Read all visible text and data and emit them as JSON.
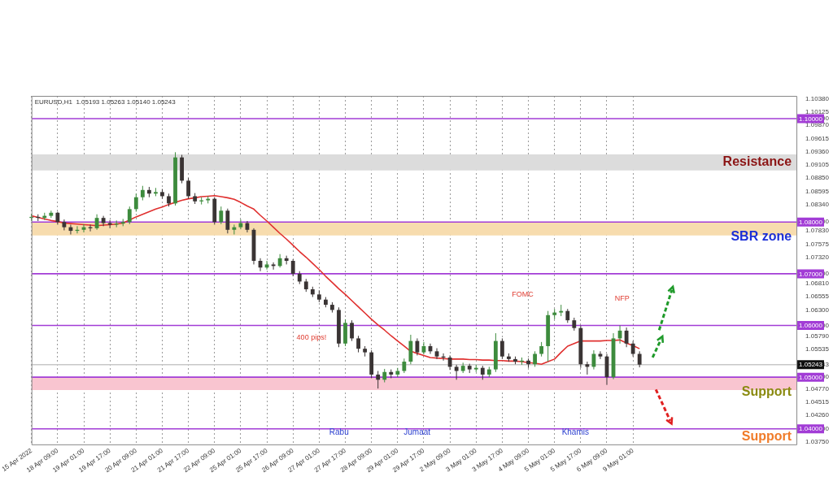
{
  "chart_data": {
    "type": "candlestick",
    "title": "EURUSD,H1  1.05193 1.05263 1.05140 1.05243",
    "categories": [
      "15 Apr 2022",
      null,
      null,
      null,
      "18 Apr 09:00",
      null,
      null,
      null,
      "19 Apr 01:00",
      null,
      null,
      null,
      "19 Apr 17:00",
      null,
      null,
      null,
      "20 Apr 09:00",
      null,
      null,
      null,
      "21 Apr 01:00",
      null,
      null,
      null,
      "21 Apr 17:00",
      null,
      null,
      null,
      "22 Apr 09:00",
      null,
      null,
      null,
      "25 Apr 01:00",
      null,
      null,
      null,
      "25 Apr 17:00",
      null,
      null,
      null,
      "26 Apr 09:00",
      null,
      null,
      null,
      "27 Apr 01:00",
      null,
      null,
      null,
      "27 Apr 17:00",
      null,
      null,
      null,
      "28 Apr 09:00",
      null,
      null,
      null,
      "29 Apr 01:00",
      null,
      null,
      null,
      "29 Apr 17:00",
      null,
      null,
      null,
      "2 May 09:00",
      null,
      null,
      null,
      "3 May 01:00",
      null,
      null,
      null,
      "3 May 17:00",
      null,
      null,
      null,
      "4 May 09:00",
      null,
      null,
      null,
      "5 May 01:00",
      null,
      null,
      null,
      "5 May 17:00",
      null,
      null,
      null,
      "6 May 09:00",
      null,
      null,
      null,
      "9 May 01:00",
      null,
      null,
      null,
      null,
      null,
      null,
      null,
      null,
      null,
      null,
      null,
      null,
      null,
      null,
      null,
      null,
      null,
      null,
      null,
      null,
      null,
      null,
      null,
      null,
      null
    ],
    "ylim": [
      1.037,
      1.1044
    ],
    "yticks": [
      {
        "value": 1.0375,
        "label": "1.03750"
      },
      {
        "value": 1.04,
        "label": "1.04000"
      },
      {
        "value": 1.0426,
        "label": "1.04260"
      },
      {
        "value": 1.04515,
        "label": "1.04515"
      },
      {
        "value": 1.0477,
        "label": "1.04770"
      },
      {
        "value": 1.05,
        "label": "1.05000"
      },
      {
        "value": 1.05243,
        "label": "1.05243"
      },
      {
        "value": 1.05535,
        "label": "1.05535"
      },
      {
        "value": 1.0579,
        "label": "1.05790"
      },
      {
        "value": 1.06,
        "label": "1.06000"
      },
      {
        "value": 1.063,
        "label": "1.06300"
      },
      {
        "value": 1.06555,
        "label": "1.06555"
      },
      {
        "value": 1.0681,
        "label": "1.06810"
      },
      {
        "value": 1.07,
        "label": "1.07000"
      },
      {
        "value": 1.0732,
        "label": "1.07320"
      },
      {
        "value": 1.07575,
        "label": "1.07575"
      },
      {
        "value": 1.0783,
        "label": "1.07830"
      },
      {
        "value": 1.08,
        "label": "1.08000"
      },
      {
        "value": 1.0834,
        "label": "1.08340"
      },
      {
        "value": 1.08595,
        "label": "1.08595"
      },
      {
        "value": 1.0885,
        "label": "1.08850"
      },
      {
        "value": 1.09105,
        "label": "1.09105"
      },
      {
        "value": 1.0936,
        "label": "1.09360"
      },
      {
        "value": 1.09615,
        "label": "1.09615"
      },
      {
        "value": 1.0987,
        "label": "1.09870"
      },
      {
        "value": 1.1,
        "label": "1.10000"
      },
      {
        "value": 1.10125,
        "label": "1.10125"
      },
      {
        "value": 1.1038,
        "label": "1.10380"
      }
    ],
    "grid": "x",
    "series": [
      {
        "colors": [
          "#3d8b3d",
          "#3a3434",
          "#3d8b3d",
          "#3d8b3d",
          "#3a3434",
          "#3a3434",
          "#3a3434",
          "#3d8b3d",
          "#3d8b3d",
          "#3a3434",
          "#3d8b3d",
          "#3a3434",
          "#3a3434",
          "#3d8b3d",
          "#3d8b3d",
          "#3d8b3d",
          "#3d8b3d",
          "#3d8b3d",
          "#3a3434",
          "#3d8b3d",
          "#3a3434",
          "#3a3434",
          "#3d8b3d",
          "#3a3434",
          "#3a3434",
          "#3a3434",
          "#3d8b3d",
          "#3d8b3d",
          "#3a3434",
          "#3d8b3d",
          "#3a3434",
          "#3d8b3d",
          "#3d8b3d",
          "#3a3434",
          "#3a3434",
          "#3a3434",
          "#3d8b3d",
          "#3a3434",
          "#3d8b3d",
          "#3a3434",
          "#3a3434",
          "#3a3434",
          "#3a3434",
          "#3a3434",
          "#3a3434",
          "#3a3434",
          "#3a3434",
          "#3a3434",
          "#3d8b3d",
          "#3a3434",
          "#3a3434",
          "#3a3434",
          "#3a3434",
          "#3a3434",
          "#3d8b3d",
          "#3a3434",
          "#3d8b3d",
          "#3d8b3d",
          "#3d8b3d",
          "#3a3434",
          "#3d8b3d",
          "#3a3434",
          "#3a3434",
          "#3a3434",
          "#3a3434",
          "#3a3434",
          "#3d8b3d",
          "#3a3434",
          "#3d8b3d",
          "#3a3434",
          "#3d8b3d",
          "#3d8b3d",
          "#3a3434",
          "#3a3434",
          "#3a3434",
          "#3d8b3d",
          "#3a3434",
          "#3d8b3d",
          "#3d8b3d",
          "#3d8b3d",
          "#3d8b3d",
          "#3d8b3d",
          "#3a3434",
          "#3a3434",
          "#3a3434",
          "#3a3434",
          "#3d8b3d",
          "#3a3434",
          "#3a3434",
          "#3d8b3d",
          "#3d8b3d",
          "#3a3434",
          "#3a3434",
          "#3a3434",
          null,
          null,
          null,
          null,
          null,
          null,
          null,
          null,
          null,
          null,
          null,
          null,
          null,
          null,
          null,
          null,
          null,
          null,
          null,
          null,
          null,
          null,
          null,
          null
        ],
        "ohlc": [
          [
            1.0808,
            1.0816,
            1.0802,
            1.081
          ],
          [
            1.081,
            1.0815,
            1.0802,
            1.0808
          ],
          [
            1.0808,
            1.0818,
            1.0804,
            1.0812
          ],
          [
            1.0812,
            1.0822,
            1.0808,
            1.0818
          ],
          [
            1.0818,
            1.082,
            1.0795,
            1.08
          ],
          [
            1.08,
            1.0805,
            1.0784,
            1.079
          ],
          [
            1.079,
            1.0795,
            1.0776,
            1.0783
          ],
          [
            1.0783,
            1.0792,
            1.0778,
            1.0785
          ],
          [
            1.0785,
            1.0796,
            1.078,
            1.079
          ],
          [
            1.079,
            1.0795,
            1.0782,
            1.0788
          ],
          [
            1.0788,
            1.0815,
            1.0785,
            1.0808
          ],
          [
            1.0808,
            1.0812,
            1.0792,
            1.0798
          ],
          [
            1.0798,
            1.0804,
            1.0788,
            1.0795
          ],
          [
            1.0795,
            1.0803,
            1.079,
            1.0797
          ],
          [
            1.0797,
            1.0806,
            1.0792,
            1.08
          ],
          [
            1.08,
            1.083,
            1.0796,
            1.0825
          ],
          [
            1.0825,
            1.0855,
            1.082,
            1.0848
          ],
          [
            1.0848,
            1.087,
            1.0842,
            1.0862
          ],
          [
            1.0862,
            1.0868,
            1.0848,
            1.0855
          ],
          [
            1.0855,
            1.0866,
            1.085,
            1.0858
          ],
          [
            1.0858,
            1.0864,
            1.0845,
            1.085
          ],
          [
            1.085,
            1.0855,
            1.083,
            1.0836
          ],
          [
            1.0836,
            1.0935,
            1.0832,
            1.0925
          ],
          [
            1.0925,
            1.093,
            1.0875,
            1.088
          ],
          [
            1.088,
            1.0885,
            1.0845,
            1.085
          ],
          [
            1.085,
            1.0856,
            1.0835,
            1.084
          ],
          [
            1.084,
            1.0848,
            1.0834,
            1.0842
          ],
          [
            1.0842,
            1.085,
            1.0836,
            1.0845
          ],
          [
            1.0845,
            1.0848,
            1.0795,
            1.08
          ],
          [
            1.08,
            1.083,
            1.0796,
            1.0822
          ],
          [
            1.0822,
            1.0826,
            1.0778,
            1.0785
          ],
          [
            1.0785,
            1.0795,
            1.0776,
            1.079
          ],
          [
            1.079,
            1.0805,
            1.0786,
            1.0798
          ],
          [
            1.0798,
            1.0802,
            1.078,
            1.0785
          ],
          [
            1.0785,
            1.0788,
            1.0718,
            1.0725
          ],
          [
            1.0725,
            1.073,
            1.0705,
            1.0712
          ],
          [
            1.0712,
            1.0725,
            1.0708,
            1.0718
          ],
          [
            1.0718,
            1.0722,
            1.0708,
            1.0715
          ],
          [
            1.0715,
            1.0738,
            1.0712,
            1.073
          ],
          [
            1.073,
            1.0735,
            1.0718,
            1.0725
          ],
          [
            1.0725,
            1.0728,
            1.0695,
            1.07
          ],
          [
            1.07,
            1.0705,
            1.068,
            1.0685
          ],
          [
            1.0685,
            1.069,
            1.0665,
            1.067
          ],
          [
            1.067,
            1.0675,
            1.0655,
            1.066
          ],
          [
            1.066,
            1.0668,
            1.0645,
            1.065
          ],
          [
            1.065,
            1.0655,
            1.0635,
            1.064
          ],
          [
            1.064,
            1.0645,
            1.0625,
            1.063
          ],
          [
            1.063,
            1.0635,
            1.0558,
            1.0565
          ],
          [
            1.0565,
            1.0612,
            1.056,
            1.0605
          ],
          [
            1.0605,
            1.061,
            1.057,
            1.0575
          ],
          [
            1.0575,
            1.058,
            1.0548,
            1.0555
          ],
          [
            1.0555,
            1.056,
            1.054,
            1.0548
          ],
          [
            1.0548,
            1.0552,
            1.0498,
            1.0505
          ],
          [
            1.0505,
            1.0512,
            1.0478,
            1.0495
          ],
          [
            1.0495,
            1.0516,
            1.049,
            1.051
          ],
          [
            1.051,
            1.0515,
            1.0498,
            1.0505
          ],
          [
            1.0505,
            1.0518,
            1.05,
            1.0512
          ],
          [
            1.0512,
            1.0536,
            1.0508,
            1.053
          ],
          [
            1.053,
            1.0582,
            1.0525,
            1.057
          ],
          [
            1.057,
            1.0575,
            1.0542,
            1.0548
          ],
          [
            1.0548,
            1.0568,
            1.0544,
            1.056
          ],
          [
            1.056,
            1.0565,
            1.0545,
            1.055
          ],
          [
            1.055,
            1.0556,
            1.0535,
            1.054
          ],
          [
            1.054,
            1.0546,
            1.0532,
            1.0538
          ],
          [
            1.0538,
            1.0542,
            1.0514,
            1.052
          ],
          [
            1.052,
            1.0524,
            1.0495,
            1.0512
          ],
          [
            1.0512,
            1.0528,
            1.0508,
            1.0522
          ],
          [
            1.0522,
            1.0526,
            1.0508,
            1.0515
          ],
          [
            1.0515,
            1.0524,
            1.051,
            1.0518
          ],
          [
            1.0518,
            1.0522,
            1.0495,
            1.0505
          ],
          [
            1.0505,
            1.052,
            1.05,
            1.0515
          ],
          [
            1.0515,
            1.0585,
            1.051,
            1.057
          ],
          [
            1.057,
            1.0575,
            1.0535,
            1.054
          ],
          [
            1.054,
            1.0546,
            1.053,
            1.0535
          ],
          [
            1.0535,
            1.054,
            1.0525,
            1.053
          ],
          [
            1.053,
            1.0538,
            1.0524,
            1.0532
          ],
          [
            1.0532,
            1.0536,
            1.0518,
            1.0525
          ],
          [
            1.0525,
            1.055,
            1.052,
            1.0545
          ],
          [
            1.0545,
            1.0568,
            1.054,
            1.056
          ],
          [
            1.056,
            1.0628,
            1.053,
            1.062
          ],
          [
            1.062,
            1.0632,
            1.0612,
            1.0625
          ],
          [
            1.0625,
            1.064,
            1.0618,
            1.0628
          ],
          [
            1.0628,
            1.0632,
            1.0605,
            1.061
          ],
          [
            1.061,
            1.0615,
            1.059,
            1.0595
          ],
          [
            1.0595,
            1.06,
            1.0518,
            1.0525
          ],
          [
            1.0525,
            1.053,
            1.0505,
            1.052
          ],
          [
            1.052,
            1.0552,
            1.0515,
            1.0545
          ],
          [
            1.0545,
            1.055,
            1.0535,
            1.054
          ],
          [
            1.054,
            1.0545,
            1.0485,
            1.05
          ],
          [
            1.05,
            1.0585,
            1.0496,
            1.0575
          ],
          [
            1.0575,
            1.06,
            1.0565,
            1.059
          ],
          [
            1.059,
            1.0596,
            1.0558,
            1.0565
          ],
          [
            1.0565,
            1.057,
            1.054,
            1.0545
          ],
          [
            1.0545,
            1.055,
            1.0519,
            1.05243
          ],
          null,
          null,
          null,
          null,
          null,
          null,
          null,
          null,
          null,
          null,
          null,
          null,
          null,
          null,
          null,
          null,
          null,
          null,
          null,
          null,
          null,
          null,
          null,
          null
        ]
      },
      {
        "type": "line",
        "color": "#e0302f",
        "values": [
          1.0812,
          1.0809,
          1.0806,
          1.0803,
          1.0801,
          1.0798,
          1.0797,
          1.0796,
          1.0795,
          1.0794,
          1.0793,
          1.0794,
          1.0795,
          1.0796,
          1.0798,
          1.0804,
          1.081,
          1.0815,
          1.082,
          1.0825,
          1.0829,
          1.0834,
          1.0838,
          1.0842,
          1.0845,
          1.0847,
          1.0849,
          1.085,
          1.0851,
          1.0849,
          1.0847,
          1.0844,
          1.0838,
          1.0831,
          1.0825,
          1.0813,
          1.0802,
          1.079,
          1.0778,
          1.0767,
          1.0755,
          1.0743,
          1.0732,
          1.072,
          1.0708,
          1.0695,
          1.0683,
          1.0671,
          1.066,
          1.0648,
          1.0636,
          1.0624,
          1.0612,
          1.0601,
          1.0591,
          1.058,
          1.057,
          1.056,
          1.055,
          1.0546,
          1.0542,
          1.0538,
          1.0537,
          1.0536,
          1.0535,
          1.0535,
          1.0535,
          1.0534,
          1.0534,
          1.0533,
          1.0533,
          1.0532,
          1.0532,
          1.0531,
          1.0531,
          1.053,
          1.0528,
          1.0527,
          1.0525,
          1.053,
          1.0535,
          1.0548,
          1.056,
          1.0565,
          1.057,
          1.057,
          1.057,
          1.057,
          1.0571,
          1.0571,
          1.0572,
          1.0566,
          1.0561,
          1.0555,
          null,
          null,
          null,
          null,
          null,
          null,
          null,
          null,
          null,
          null,
          null,
          null,
          null,
          null,
          null,
          null,
          null,
          null,
          null,
          null,
          null,
          null,
          null,
          null
        ]
      }
    ],
    "bands": [
      {
        "axis": "y",
        "from": 1.09,
        "to": 1.0931,
        "label": "Resistance",
        "color": "#dcdcdc"
      },
      {
        "axis": "y",
        "from": 1.0774,
        "to": 1.08,
        "label": "SBR zone",
        "color": "#f7dcae"
      },
      {
        "axis": "y",
        "from": 1.0475,
        "to": 1.05,
        "label": "Support",
        "color": "#f9c5d0"
      }
    ],
    "ref_lines": [
      {
        "axis": "y",
        "value": 1.1,
        "color": "#a23cd6"
      },
      {
        "axis": "y",
        "value": 1.08,
        "color": "#a23cd6"
      },
      {
        "axis": "y",
        "value": 1.07,
        "color": "#a23cd6"
      },
      {
        "axis": "y",
        "value": 1.06,
        "color": "#a23cd6"
      },
      {
        "axis": "y",
        "value": 1.05,
        "color": "#a23cd6"
      },
      {
        "axis": "y",
        "value": 1.04,
        "label": "Support",
        "color": "#a23cd6"
      },
      {
        "axis": "y",
        "value": 1.05243,
        "color": "#c8c8c8"
      }
    ],
    "annotations": [
      "400 pips!",
      "FOMC",
      "NFP",
      "Rabu",
      "Jumaat",
      "Khamis"
    ]
  }
}
